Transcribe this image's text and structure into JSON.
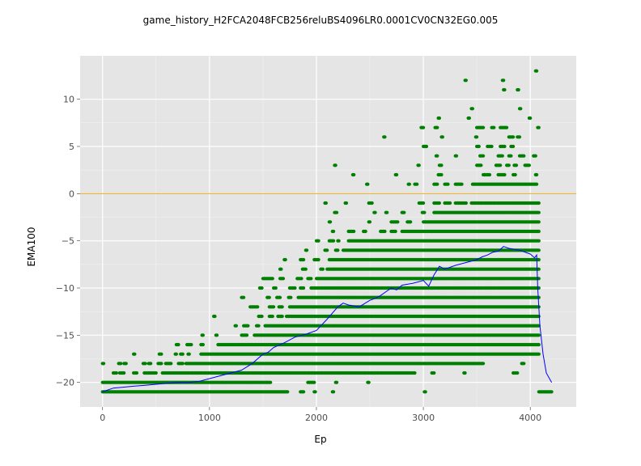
{
  "chart_data": {
    "type": "scatter",
    "title": "game_history_H2FCA2048FCB256reluBS4096LR0.0001CV0CN32EG0.005",
    "xlabel": "Ep",
    "ylabel": "EMA100",
    "xlim": [
      -210,
      4430
    ],
    "ylim": [
      -22.6,
      14.6
    ],
    "x_ticks": [
      0,
      1000,
      2000,
      3000,
      4000
    ],
    "y_ticks": [
      -20,
      -15,
      -10,
      -5,
      0,
      5,
      10
    ],
    "x_tick_labels": [
      "0",
      "1000",
      "2000",
      "3000",
      "4000"
    ],
    "y_tick_labels": [
      "−20",
      "−15",
      "−10",
      "−5",
      "0",
      "5",
      "10"
    ],
    "grid": true,
    "background": "#e5e5e5",
    "reference_line": {
      "y": 0,
      "color": "#e69f00"
    },
    "series": [
      {
        "kind": "scatter",
        "color": "#008000",
        "note": "per-episode score, integers from -21 to 13",
        "band_ranges": [
          {
            "y": 13,
            "x_ranges": [
              [
                4050,
                4060
              ]
            ]
          },
          {
            "y": 12,
            "x_ranges": [
              [
                3390,
                3400
              ],
              [
                3740,
                3750
              ]
            ]
          },
          {
            "y": 11,
            "x_ranges": [
              [
                3750,
                3760
              ],
              [
                3880,
                3890
              ]
            ]
          },
          {
            "y": 9,
            "x_ranges": [
              [
                3450,
                3460
              ],
              [
                3900,
                3910
              ]
            ]
          },
          {
            "y": 8,
            "x_ranges": [
              [
                3140,
                3150
              ],
              [
                3420,
                3430
              ],
              [
                3990,
                4000
              ]
            ]
          },
          {
            "y": 7,
            "x_ranges": [
              [
                2980,
                3000
              ],
              [
                3110,
                3130
              ],
              [
                3500,
                3560
              ],
              [
                3640,
                3660
              ],
              [
                3720,
                3780
              ],
              [
                4070,
                4080
              ]
            ]
          },
          {
            "y": 6,
            "x_ranges": [
              [
                2630,
                2640
              ],
              [
                3170,
                3180
              ],
              [
                3490,
                3500
              ],
              [
                3800,
                3840
              ],
              [
                3880,
                3900
              ]
            ]
          },
          {
            "y": 5,
            "x_ranges": [
              [
                3000,
                3030
              ],
              [
                3500,
                3520
              ],
              [
                3600,
                3640
              ],
              [
                3720,
                3760
              ],
              [
                3820,
                3840
              ]
            ]
          },
          {
            "y": 4,
            "x_ranges": [
              [
                3120,
                3130
              ],
              [
                3300,
                3310
              ],
              [
                3530,
                3560
              ],
              [
                3700,
                3740
              ],
              [
                3800,
                3820
              ],
              [
                3900,
                3940
              ],
              [
                4030,
                4050
              ]
            ]
          },
          {
            "y": 3,
            "x_ranges": [
              [
                2170,
                2180
              ],
              [
                2950,
                2960
              ],
              [
                3150,
                3170
              ],
              [
                3500,
                3540
              ],
              [
                3680,
                3720
              ],
              [
                3780,
                3800
              ],
              [
                3850,
                3870
              ],
              [
                3950,
                3990
              ]
            ]
          },
          {
            "y": 2,
            "x_ranges": [
              [
                2340,
                2350
              ],
              [
                2740,
                2750
              ],
              [
                3140,
                3170
              ],
              [
                3560,
                3620
              ],
              [
                3700,
                3760
              ],
              [
                3840,
                3860
              ],
              [
                4050,
                4060
              ]
            ]
          },
          {
            "y": 1,
            "x_ranges": [
              [
                2470,
                2480
              ],
              [
                2860,
                2870
              ],
              [
                2920,
                2940
              ],
              [
                3100,
                3130
              ],
              [
                3200,
                3230
              ],
              [
                3300,
                3360
              ],
              [
                3460,
                4060
              ]
            ]
          },
          {
            "y": -1,
            "x_ranges": [
              [
                2080,
                2090
              ],
              [
                2270,
                2280
              ],
              [
                2490,
                2520
              ],
              [
                2960,
                3000
              ],
              [
                3100,
                3150
              ],
              [
                3200,
                3250
              ],
              [
                3300,
                3400
              ],
              [
                3450,
                4080
              ]
            ]
          },
          {
            "y": -2,
            "x_ranges": [
              [
                2170,
                2190
              ],
              [
                2540,
                2550
              ],
              [
                2650,
                2660
              ],
              [
                2800,
                2820
              ],
              [
                2990,
                3010
              ],
              [
                3100,
                4080
              ]
            ]
          },
          {
            "y": -3,
            "x_ranges": [
              [
                2120,
                2130
              ],
              [
                2490,
                2500
              ],
              [
                2700,
                2760
              ],
              [
                2850,
                2880
              ],
              [
                3000,
                4080
              ]
            ]
          },
          {
            "y": -4,
            "x_ranges": [
              [
                2150,
                2160
              ],
              [
                2300,
                2350
              ],
              [
                2440,
                2460
              ],
              [
                2600,
                2640
              ],
              [
                2700,
                2740
              ],
              [
                2800,
                4080
              ]
            ]
          },
          {
            "y": -5,
            "x_ranges": [
              [
                2000,
                2020
              ],
              [
                2120,
                2160
              ],
              [
                2200,
                2210
              ],
              [
                2300,
                4080
              ]
            ]
          },
          {
            "y": -6,
            "x_ranges": [
              [
                1900,
                1910
              ],
              [
                2080,
                2100
              ],
              [
                2180,
                2200
              ],
              [
                2250,
                4080
              ]
            ]
          },
          {
            "y": -7,
            "x_ranges": [
              [
                1700,
                1710
              ],
              [
                1850,
                1880
              ],
              [
                1980,
                2020
              ],
              [
                2120,
                4080
              ]
            ]
          },
          {
            "y": -8,
            "x_ranges": [
              [
                1660,
                1670
              ],
              [
                1870,
                1900
              ],
              [
                2040,
                2060
              ],
              [
                2100,
                4080
              ]
            ]
          },
          {
            "y": -9,
            "x_ranges": [
              [
                1500,
                1590
              ],
              [
                1660,
                1690
              ],
              [
                1820,
                1860
              ],
              [
                1920,
                1950
              ],
              [
                2000,
                4080
              ]
            ]
          },
          {
            "y": -10,
            "x_ranges": [
              [
                1470,
                1490
              ],
              [
                1600,
                1620
              ],
              [
                1750,
                1800
              ],
              [
                1850,
                1880
              ],
              [
                1950,
                4080
              ]
            ]
          },
          {
            "y": -11,
            "x_ranges": [
              [
                1300,
                1320
              ],
              [
                1540,
                1560
              ],
              [
                1630,
                1660
              ],
              [
                1740,
                1760
              ],
              [
                1830,
                4080
              ]
            ]
          },
          {
            "y": -12,
            "x_ranges": [
              [
                1380,
                1450
              ],
              [
                1560,
                1600
              ],
              [
                1650,
                1680
              ],
              [
                1750,
                4080
              ]
            ]
          },
          {
            "y": -13,
            "x_ranges": [
              [
                1040,
                1050
              ],
              [
                1460,
                1490
              ],
              [
                1560,
                1590
              ],
              [
                1640,
                1680
              ],
              [
                1720,
                4080
              ]
            ]
          },
          {
            "y": -14,
            "x_ranges": [
              [
                1240,
                1250
              ],
              [
                1320,
                1360
              ],
              [
                1440,
                1460
              ],
              [
                1520,
                4080
              ]
            ]
          },
          {
            "y": -15,
            "x_ranges": [
              [
                930,
                940
              ],
              [
                1060,
                1070
              ],
              [
                1300,
                1350
              ],
              [
                1420,
                4080
              ]
            ]
          },
          {
            "y": -16,
            "x_ranges": [
              [
                690,
                710
              ],
              [
                790,
                830
              ],
              [
                920,
                940
              ],
              [
                1080,
                4080
              ]
            ]
          },
          {
            "y": -17,
            "x_ranges": [
              [
                290,
                300
              ],
              [
                530,
                550
              ],
              [
                680,
                690
              ],
              [
                730,
                750
              ],
              [
                800,
                810
              ],
              [
                920,
                4080
              ]
            ]
          },
          {
            "y": -18,
            "x_ranges": [
              [
                0,
                10
              ],
              [
                150,
                170
              ],
              [
                200,
                220
              ],
              [
                380,
                400
              ],
              [
                430,
                450
              ],
              [
                520,
                550
              ],
              [
                590,
                640
              ],
              [
                710,
                750
              ],
              [
                780,
                3560
              ],
              [
                3920,
                3940
              ]
            ]
          },
          {
            "y": -19,
            "x_ranges": [
              [
                100,
                130
              ],
              [
                160,
                200
              ],
              [
                290,
                320
              ],
              [
                390,
                500
              ],
              [
                560,
                2920
              ],
              [
                3080,
                3100
              ],
              [
                3380,
                3390
              ],
              [
                3840,
                3880
              ]
            ]
          },
          {
            "y": -20,
            "x_ranges": [
              [
                0,
                1570
              ],
              [
                1920,
                1980
              ],
              [
                2180,
                2190
              ],
              [
                2480,
                2490
              ]
            ]
          },
          {
            "y": -21,
            "x_ranges": [
              [
                0,
                1730
              ],
              [
                1850,
                1880
              ],
              [
                1980,
                1990
              ],
              [
                2150,
                2160
              ],
              [
                3010,
                3020
              ],
              [
                4080,
                4200
              ]
            ]
          }
        ]
      },
      {
        "kind": "line",
        "color": "#0000ff",
        "note": "exponential moving average (EMA100) of the score",
        "x": [
          0,
          100,
          200,
          300,
          400,
          500,
          600,
          700,
          800,
          900,
          1000,
          1100,
          1200,
          1300,
          1400,
          1500,
          1550,
          1600,
          1700,
          1800,
          1900,
          2000,
          2100,
          2200,
          2250,
          2300,
          2400,
          2500,
          2550,
          2600,
          2700,
          2750,
          2800,
          2900,
          3000,
          3050,
          3100,
          3150,
          3200,
          3300,
          3400,
          3500,
          3550,
          3600,
          3650,
          3700,
          3750,
          3800,
          3900,
          4000,
          4040,
          4060,
          4070,
          4090,
          4120,
          4150,
          4200
        ],
        "y": [
          -21,
          -20.6,
          -20.5,
          -20.4,
          -20.3,
          -20.2,
          -20.1,
          -20,
          -20,
          -19.9,
          -19.6,
          -19.3,
          -19,
          -18.7,
          -18,
          -17,
          -16.8,
          -16.3,
          -15.8,
          -15.2,
          -14.9,
          -14.5,
          -13.3,
          -12,
          -11.6,
          -11.8,
          -12,
          -11.3,
          -11.1,
          -10.8,
          -10,
          -10.2,
          -9.7,
          -9.5,
          -9.2,
          -9.8,
          -8.6,
          -7.7,
          -8,
          -7.6,
          -7.3,
          -7,
          -6.7,
          -6.5,
          -6.2,
          -6.1,
          -5.6,
          -5.8,
          -6,
          -6.4,
          -6.8,
          -6.5,
          -10,
          -14,
          -17,
          -19,
          -20
        ]
      }
    ]
  }
}
